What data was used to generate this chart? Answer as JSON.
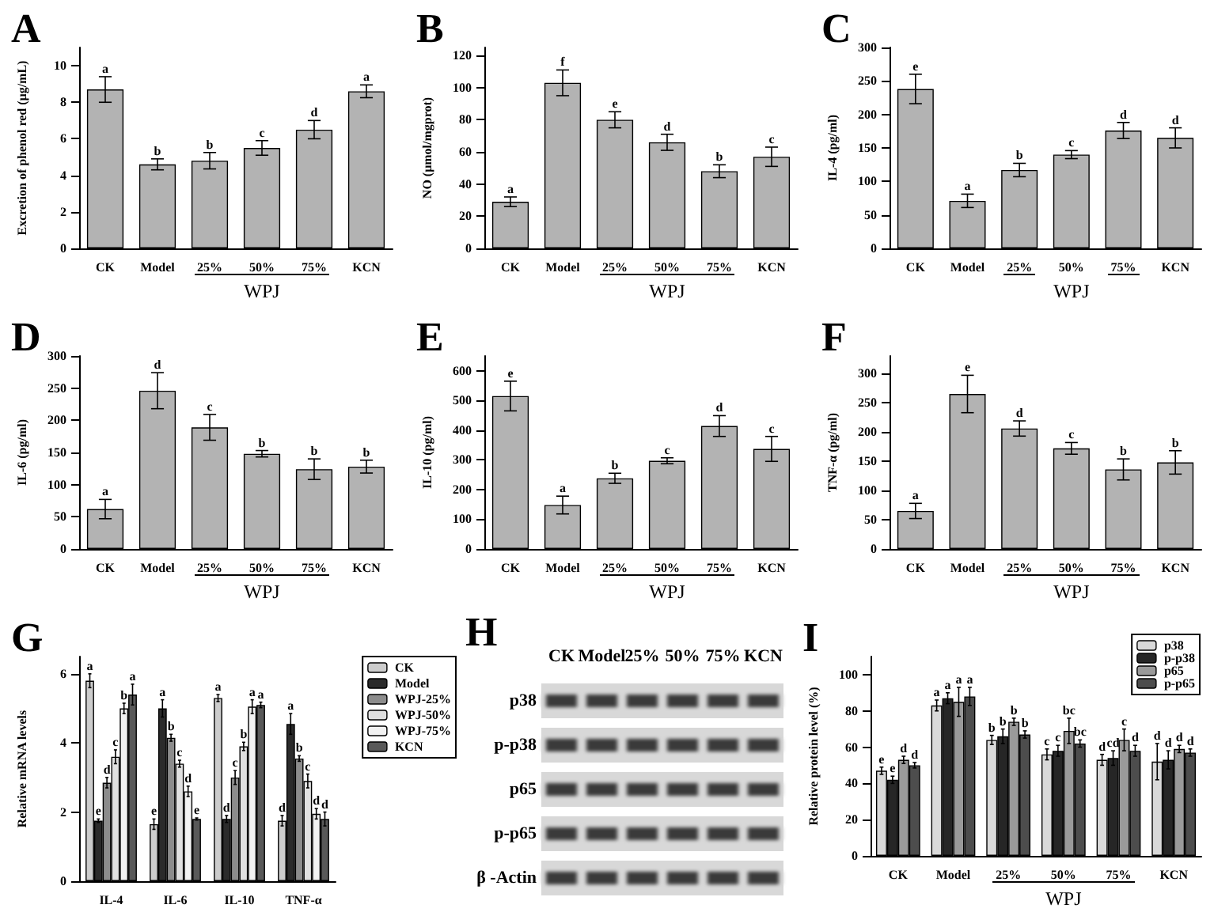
{
  "chart_data": [
    {
      "type": "bar",
      "title": "A",
      "ylabel": "Excretion of phenol red (μg/mL)",
      "xlabel": "WPJ",
      "categories": [
        "CK",
        "Model",
        "25%",
        "50%",
        "75%",
        "KCN"
      ],
      "color": "#b3b3b3",
      "values": [
        8.7,
        4.6,
        4.8,
        5.5,
        6.5,
        8.6
      ],
      "errors": [
        0.7,
        0.3,
        0.45,
        0.4,
        0.5,
        0.35
      ],
      "value_labels": [
        "a",
        "b",
        "b",
        "c",
        "d",
        "a"
      ],
      "ylim": [
        0,
        11
      ],
      "yticks": [
        0,
        2,
        4,
        6,
        8,
        10
      ]
    },
    {
      "type": "bar",
      "title": "B",
      "ylabel": "NO (μmol/mgprot)",
      "xlabel": "WPJ",
      "categories": [
        "CK",
        "Model",
        "25%",
        "50%",
        "75%",
        "KCN"
      ],
      "color": "#b3b3b3",
      "values": [
        29,
        103,
        80,
        66,
        48,
        57
      ],
      "errors": [
        3,
        8,
        5,
        5,
        4,
        6
      ],
      "value_labels": [
        "a",
        "f",
        "e",
        "d",
        "b",
        "c"
      ],
      "ylim": [
        0,
        125
      ],
      "yticks": [
        0,
        20,
        40,
        60,
        80,
        100,
        120
      ]
    },
    {
      "type": "bar",
      "title": "C",
      "ylabel": "IL-4 (pg/ml)",
      "xlabel": "WPJ",
      "categories": [
        "CK",
        "Model",
        "25%",
        "50%",
        "75%",
        "KCN"
      ],
      "color": "#b3b3b3",
      "values": [
        238,
        71,
        117,
        140,
        176,
        165
      ],
      "errors": [
        22,
        10,
        10,
        6,
        12,
        15
      ],
      "value_labels": [
        "e",
        "a",
        "b",
        "c",
        "d",
        "d"
      ],
      "ylim": [
        0,
        300
      ],
      "yticks": [
        0,
        50,
        100,
        150,
        200,
        250,
        300
      ]
    },
    {
      "type": "bar",
      "title": "D",
      "ylabel": "IL-6 (pg/ml)",
      "xlabel": "WPJ",
      "categories": [
        "CK",
        "Model",
        "25%",
        "50%",
        "75%",
        "KCN"
      ],
      "color": "#b3b3b3",
      "values": [
        62,
        246,
        189,
        148,
        124,
        128
      ],
      "errors": [
        15,
        28,
        20,
        5,
        16,
        10
      ],
      "value_labels": [
        "a",
        "d",
        "c",
        "b",
        "b",
        "b"
      ],
      "ylim": [
        0,
        300
      ],
      "yticks": [
        0,
        50,
        100,
        150,
        200,
        250,
        300
      ]
    },
    {
      "type": "bar",
      "title": "E",
      "ylabel": "IL-10 (pg/ml)",
      "xlabel": "WPJ",
      "categories": [
        "CK",
        "Model",
        "25%",
        "50%",
        "75%",
        "KCN"
      ],
      "color": "#b3b3b3",
      "values": [
        515,
        148,
        238,
        297,
        414,
        337
      ],
      "errors": [
        50,
        30,
        17,
        10,
        35,
        42
      ],
      "value_labels": [
        "e",
        "a",
        "b",
        "c",
        "d",
        "c"
      ],
      "ylim": [
        0,
        650
      ],
      "yticks": [
        0,
        100,
        200,
        300,
        400,
        500,
        600
      ]
    },
    {
      "type": "bar",
      "title": "F",
      "ylabel": "TNF-α (pg/ml)",
      "xlabel": "WPJ",
      "categories": [
        "CK",
        "Model",
        "25%",
        "50%",
        "75%",
        "KCN"
      ],
      "color": "#b3b3b3",
      "values": [
        65,
        265,
        206,
        172,
        136,
        148
      ],
      "errors": [
        13,
        32,
        13,
        10,
        18,
        20
      ],
      "value_labels": [
        "a",
        "e",
        "d",
        "c",
        "b",
        "b"
      ],
      "ylim": [
        0,
        330
      ],
      "yticks": [
        0,
        50,
        100,
        150,
        200,
        250,
        300
      ]
    },
    {
      "type": "bar",
      "title": "G",
      "ylabel": "Relative mRNA levels",
      "categories": [
        "IL-4",
        "IL-6",
        "IL-10",
        "TNF-α"
      ],
      "legend": "right",
      "ylim": [
        0,
        6.5
      ],
      "yticks": [
        0,
        2,
        4,
        6
      ],
      "series": [
        {
          "name": "CK",
          "color": "#cccccc",
          "values": [
            5.8,
            1.65,
            5.3,
            1.75
          ],
          "errors": [
            0.2,
            0.15,
            0.1,
            0.15
          ],
          "value_labels": [
            "a",
            "e",
            "a",
            "d"
          ]
        },
        {
          "name": "Model",
          "color": "#2b2b2b",
          "values": [
            1.75,
            5.0,
            1.8,
            4.55
          ],
          "errors": [
            0.05,
            0.25,
            0.1,
            0.3
          ],
          "value_labels": [
            "e",
            "a",
            "d",
            "a"
          ]
        },
        {
          "name": "WPJ-25%",
          "color": "#8c8c8c",
          "values": [
            2.85,
            4.15,
            3.0,
            3.55
          ],
          "errors": [
            0.15,
            0.1,
            0.2,
            0.08
          ],
          "value_labels": [
            "d",
            "b",
            "c",
            "b"
          ]
        },
        {
          "name": "WPJ-50%",
          "color": "#e0e0e0",
          "values": [
            3.6,
            3.4,
            3.9,
            2.9
          ],
          "errors": [
            0.2,
            0.1,
            0.12,
            0.2
          ],
          "value_labels": [
            "c",
            "c",
            "b",
            "c"
          ]
        },
        {
          "name": "WPJ-75%",
          "color": "#f2f2f2",
          "values": [
            5.0,
            2.6,
            5.05,
            1.95
          ],
          "errors": [
            0.15,
            0.15,
            0.2,
            0.15
          ],
          "value_labels": [
            "b",
            "d",
            "a",
            "d"
          ]
        },
        {
          "name": "KCN",
          "color": "#595959",
          "values": [
            5.4,
            1.8,
            5.1,
            1.8
          ],
          "errors": [
            0.3,
            0.03,
            0.08,
            0.2
          ],
          "value_labels": [
            "a",
            "e",
            "a",
            "d"
          ]
        }
      ]
    },
    {
      "type": "other",
      "title": "H",
      "categories": [
        "CK",
        "Model",
        "25%",
        "50%",
        "75%",
        "KCN"
      ],
      "annotations": [
        "p38",
        "p-p38",
        "p65",
        "p-p65",
        "β -Actin"
      ]
    },
    {
      "type": "bar",
      "title": "I",
      "ylabel": "Relative protein level (%)",
      "xlabel": "WPJ",
      "categories": [
        "CK",
        "Model",
        "25%",
        "50%",
        "75%",
        "KCN"
      ],
      "legend": "top right",
      "ylim": [
        0,
        110
      ],
      "yticks": [
        0,
        20,
        40,
        60,
        80,
        100
      ],
      "series": [
        {
          "name": "p38",
          "color": "#d9d9d9",
          "values": [
            47,
            83,
            64,
            56,
            53,
            52
          ],
          "errors": [
            2,
            3,
            2.5,
            3,
            3,
            10
          ],
          "value_labels": [
            "e",
            "a",
            "b",
            "c",
            "d",
            "d"
          ]
        },
        {
          "name": "p-p38",
          "color": "#262626",
          "values": [
            42,
            87,
            66,
            58,
            54,
            53
          ],
          "errors": [
            2,
            3,
            4,
            3,
            4,
            5
          ],
          "value_labels": [
            "e",
            "a",
            "b",
            "c",
            "cd",
            "d"
          ]
        },
        {
          "name": "p65",
          "color": "#9a9a9a",
          "values": [
            53,
            85,
            74,
            69,
            64,
            59
          ],
          "errors": [
            2,
            8,
            2,
            7,
            6,
            2
          ],
          "value_labels": [
            "d",
            "a",
            "b",
            "bc",
            "c",
            "d"
          ]
        },
        {
          "name": "p-p65",
          "color": "#4d4d4d",
          "values": [
            50,
            88,
            67,
            62,
            58,
            57
          ],
          "errors": [
            1.5,
            5,
            2,
            2,
            3,
            2
          ],
          "value_labels": [
            "d",
            "a",
            "b",
            "bc",
            "d",
            "d"
          ]
        }
      ]
    }
  ]
}
